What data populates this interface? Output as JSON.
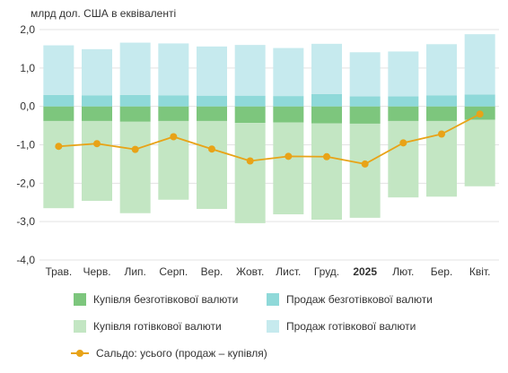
{
  "chart_data": {
    "type": "bar",
    "unit_label": "млрд дол. США в еквіваленті",
    "categories": [
      "Трав.",
      "Черв.",
      "Лип.",
      "Серп.",
      "Вер.",
      "Жовт.",
      "Лист.",
      "Груд.",
      "2025",
      "Лют.",
      "Бер.",
      "Квіт."
    ],
    "bold_categories": [
      "2025"
    ],
    "ylim": [
      -4.0,
      2.0
    ],
    "yticks": [
      "2,0",
      "1,0",
      "0,0",
      "-1,0",
      "-2,0",
      "-3,0",
      "-4,0"
    ],
    "grid": true,
    "stacked": true,
    "series": [
      {
        "name": "Купівля безготівкової валюти",
        "color": "#7dc67d",
        "kind": "bar",
        "values": [
          -0.38,
          -0.38,
          -0.4,
          -0.38,
          -0.38,
          -0.43,
          -0.42,
          -0.44,
          -0.45,
          -0.38,
          -0.38,
          -0.35
        ]
      },
      {
        "name": "Продаж безготівкової валюти",
        "color": "#8fd9d9",
        "kind": "bar",
        "values": [
          0.3,
          0.29,
          0.3,
          0.29,
          0.28,
          0.28,
          0.27,
          0.32,
          0.26,
          0.26,
          0.29,
          0.31
        ]
      },
      {
        "name": "Купівля готівкової валюти",
        "color": "#c3e6c3",
        "kind": "bar",
        "values": [
          -2.27,
          -2.08,
          -2.38,
          -2.05,
          -2.29,
          -2.61,
          -2.39,
          -2.51,
          -2.45,
          -1.99,
          -1.97,
          -1.73
        ]
      },
      {
        "name": "Продаж готівкової валюти",
        "color": "#c6eaee",
        "kind": "bar",
        "values": [
          1.29,
          1.2,
          1.36,
          1.35,
          1.28,
          1.32,
          1.25,
          1.31,
          1.15,
          1.17,
          1.33,
          1.57
        ]
      },
      {
        "name": "Сальдо: усього (продаж – купівля)",
        "color": "#e8a317",
        "kind": "line",
        "values": [
          -1.04,
          -0.97,
          -1.12,
          -0.79,
          -1.11,
          -1.42,
          -1.3,
          -1.31,
          -1.5,
          -0.95,
          -0.72,
          -0.2
        ]
      }
    ]
  }
}
